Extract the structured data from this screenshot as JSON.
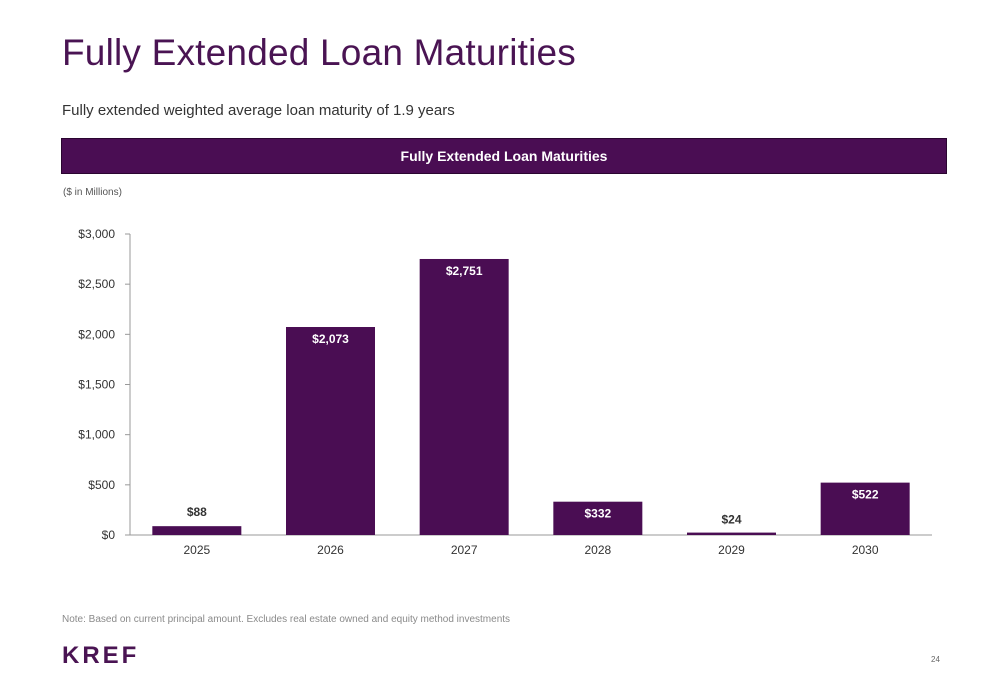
{
  "page": {
    "title": "Fully Extended Loan Maturities",
    "subtitle": "Fully extended weighted average loan maturity of 1.9 years",
    "banner_title": "Fully Extended Loan Maturities",
    "units_label": "($ in Millions)",
    "note": "Note: Based on current principal amount. Excludes real estate owned and equity method investments",
    "logo_text": "KREF",
    "page_number": "24"
  },
  "colors": {
    "bar": "#4a0d53",
    "title": "#4a1453",
    "banner": "#4a0d53"
  },
  "chart_data": {
    "type": "bar",
    "title": "Fully Extended Loan Maturities",
    "categories": [
      "2025",
      "2026",
      "2027",
      "2028",
      "2029",
      "2030"
    ],
    "values": [
      88,
      2073,
      2751,
      332,
      24,
      522
    ],
    "data_labels": [
      "$88",
      "$2,073",
      "$2,751",
      "$332",
      "$24",
      "$522"
    ],
    "ylim": [
      0,
      3000
    ],
    "yticks": [
      0,
      500,
      1000,
      1500,
      2000,
      2500,
      3000
    ],
    "ytick_labels": [
      "$0",
      "$500",
      "$1,000",
      "$1,500",
      "$2,000",
      "$2,500",
      "$3,000"
    ],
    "xlabel": "",
    "ylabel": "",
    "grid": false,
    "legend": "none"
  }
}
